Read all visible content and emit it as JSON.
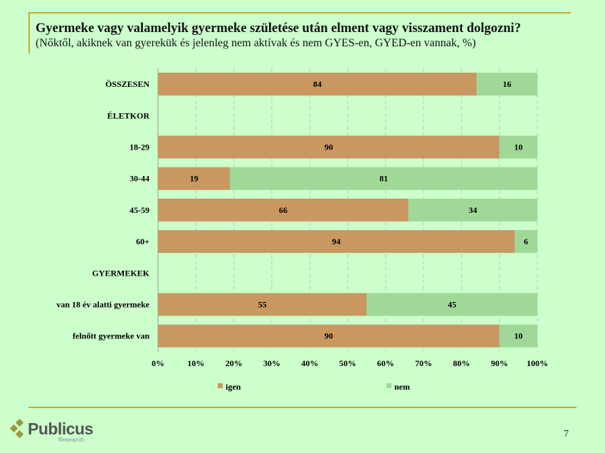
{
  "title": "Gyermeke vagy valamelyik gyermeke születése után elment vagy visszament dolgozni?",
  "subtitle": "(Nőktől, akiknek van gyerekük és jelenleg nem aktívak és nem GYES-en, GYED-en vannak, %)",
  "page_number": "7",
  "logo": {
    "name": "Publicus",
    "sub": "Research"
  },
  "chart_data": {
    "type": "bar",
    "orientation": "horizontal",
    "stacked": true,
    "categories": [
      "ÖSSZESEN",
      "ÉLETKOR",
      "18-29",
      "30-44",
      "45-59",
      "60+",
      "GYERMEKEK",
      "van 18 év alatti gyermeke",
      "felnőtt gyermeke van"
    ],
    "series": [
      {
        "name": "igen",
        "color": "#c89860",
        "values": [
          84,
          null,
          90,
          19,
          66,
          94,
          null,
          55,
          90
        ]
      },
      {
        "name": "nem",
        "color": "#a0d898",
        "values": [
          16,
          null,
          10,
          81,
          34,
          6,
          null,
          45,
          10
        ]
      }
    ],
    "xlim": [
      0,
      100
    ],
    "x_ticks": [
      "0%",
      "10%",
      "20%",
      "30%",
      "40%",
      "50%",
      "60%",
      "70%",
      "80%",
      "90%",
      "100%"
    ],
    "grid": "vertical dashed",
    "legend": "bottom"
  }
}
